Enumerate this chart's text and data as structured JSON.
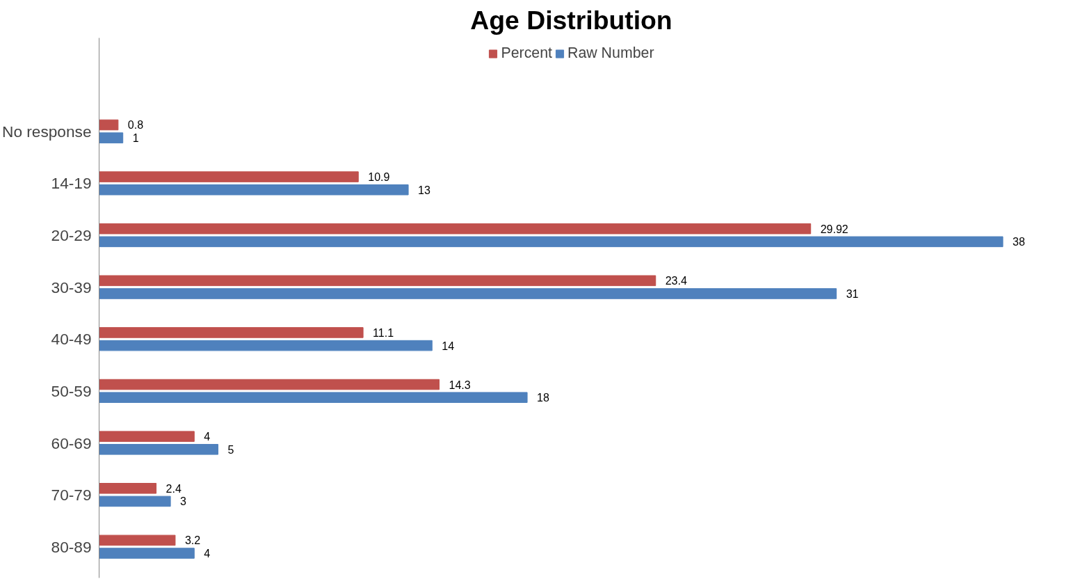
{
  "chart_data": {
    "type": "bar",
    "orientation": "horizontal",
    "title": "Age Distribution",
    "categories": [
      "No response",
      "14-19",
      "20-29",
      "30-39",
      "40-49",
      "50-59",
      "60-69",
      "70-79",
      "80-89"
    ],
    "series": [
      {
        "name": "Percent",
        "color": "#c0504d",
        "values": [
          0.8,
          10.9,
          29.92,
          23.4,
          11.1,
          14.3,
          4,
          2.4,
          3.2
        ]
      },
      {
        "name": "Raw Number",
        "color": "#4f81bd",
        "values": [
          1,
          13,
          38,
          31,
          14,
          18,
          5,
          3,
          4
        ]
      }
    ],
    "data_labels": true,
    "legend": "top",
    "grid": false,
    "tick_labels": "y"
  }
}
